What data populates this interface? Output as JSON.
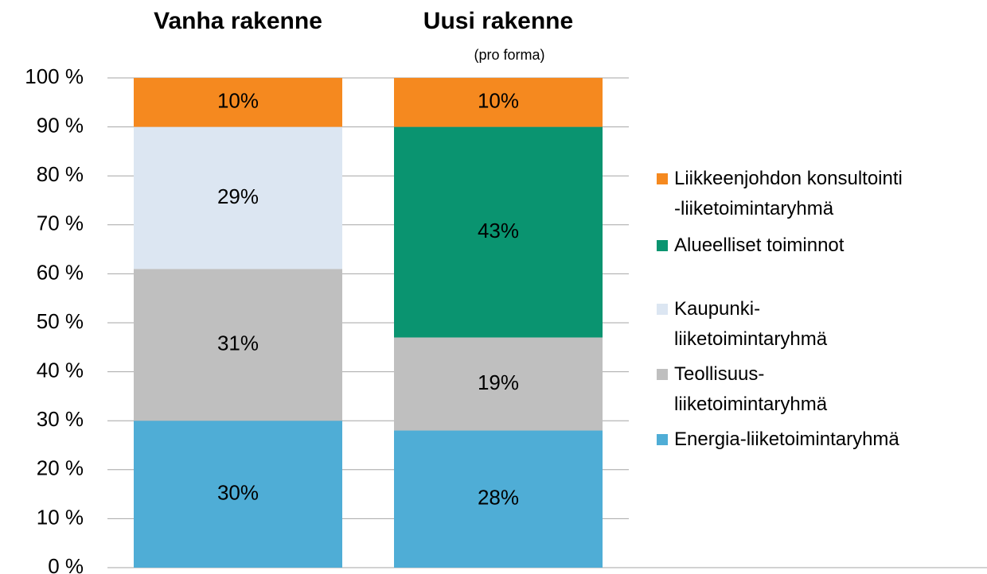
{
  "chart_data": {
    "type": "stacked_bar",
    "categories": [
      "Vanha rakenne",
      "Uusi rakenne"
    ],
    "annotations": [
      "(pro forma)"
    ],
    "series": [
      {
        "name": "Energia-liiketoimintaryhmä",
        "color": "#4fadd6",
        "values": [
          30,
          28
        ],
        "value_labels": [
          "30%",
          "28%"
        ]
      },
      {
        "name": "Teollisuus-\nliiketoimintaryhmä",
        "color": "#bfbfbf",
        "values": [
          31,
          19
        ],
        "value_labels": [
          "31%",
          "19%"
        ]
      },
      {
        "name": "Kaupunki-\nliiketoimintaryhmä",
        "color": "#dce6f2",
        "values": [
          29,
          null
        ],
        "value_labels": [
          "29%",
          null
        ]
      },
      {
        "name": "Alueelliset toiminnot",
        "color": "#0a9470",
        "values": [
          null,
          43
        ],
        "value_labels": [
          null,
          "43%"
        ]
      },
      {
        "name": "Liikkeenjohdon konsultointi\n-liiketoimintaryhmä",
        "color": "#f5891f",
        "values": [
          10,
          10
        ],
        "value_labels": [
          "10%",
          "10%"
        ]
      }
    ],
    "ylim": [
      0,
      100
    ],
    "yticks": [
      {
        "value": 0,
        "label": "0 %"
      },
      {
        "value": 10,
        "label": "10 %"
      },
      {
        "value": 20,
        "label": "20 %"
      },
      {
        "value": 30,
        "label": "30 %"
      },
      {
        "value": 40,
        "label": "40 %"
      },
      {
        "value": 50,
        "label": "50 %"
      },
      {
        "value": 60,
        "label": "60 %"
      },
      {
        "value": 70,
        "label": "70 %"
      },
      {
        "value": 80,
        "label": "80 %"
      },
      {
        "value": 90,
        "label": "90 %"
      },
      {
        "value": 100,
        "label": "100 %"
      }
    ],
    "grid": true,
    "legend": "right"
  }
}
